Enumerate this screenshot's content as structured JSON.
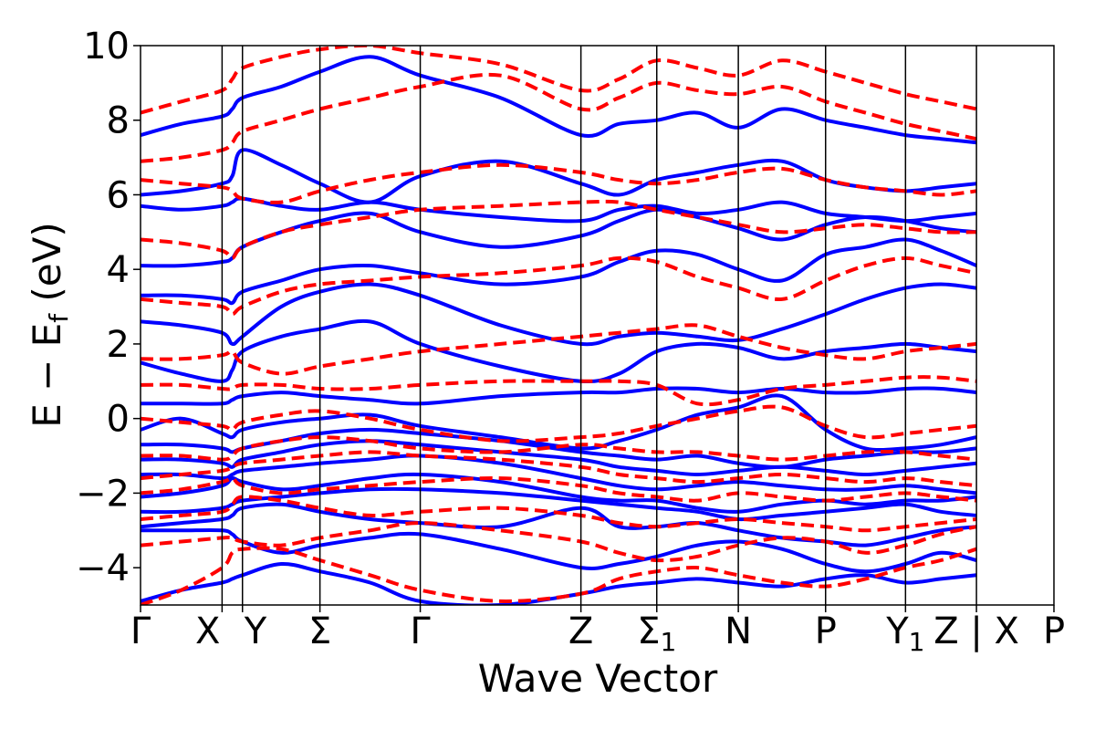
{
  "chart_data": {
    "type": "line",
    "title": "",
    "xlabel": "Wave Vector",
    "ylabel": "E − E_f (eV)",
    "ylabel_main": "E − E",
    "ylabel_sub": "f",
    "ylabel_unit": " (eV)",
    "ylim": [
      -5,
      10
    ],
    "xlim": [
      0,
      11.2
    ],
    "y_ticks": [
      "−4",
      "−2",
      "0",
      "2",
      "4",
      "6",
      "8",
      "10"
    ],
    "y_tick_values": [
      -4,
      -2,
      0,
      2,
      4,
      6,
      8,
      10
    ],
    "kpoints": [
      {
        "label": "Γ",
        "sub": "",
        "x": 0.0
      },
      {
        "label": "X",
        "sub": "",
        "x": 1.0
      },
      {
        "label": "Y",
        "sub": "",
        "x": 1.25
      },
      {
        "label": "Σ",
        "sub": "",
        "x": 2.2
      },
      {
        "label": "Γ",
        "sub": "",
        "x": 3.43
      },
      {
        "label": "Z",
        "sub": "",
        "x": 5.4
      },
      {
        "label": "Σ",
        "sub": "1",
        "x": 6.33
      },
      {
        "label": "N",
        "sub": "",
        "x": 7.33
      },
      {
        "label": "P",
        "sub": "",
        "x": 8.4
      },
      {
        "label": "Y",
        "sub": "1",
        "x": 9.38
      },
      {
        "label": "Z | X",
        "sub": "",
        "x": 10.25
      },
      {
        "label": "P",
        "sub": "",
        "x": 11.2
      }
    ],
    "series": [
      {
        "style": "solid",
        "color": "#0000ff",
        "bands": [
          [
            -4.9,
            -4.6,
            -4.4,
            -4.3,
            -4.2,
            -3.9,
            -4.1,
            -4.4,
            -4.9,
            -5.0,
            -4.7,
            -4.5,
            -4.4,
            -4.3,
            -4.4,
            -4.5,
            -4.3,
            -4.2,
            -4.4,
            -4.3,
            -4.2
          ],
          [
            -3.0,
            -3.0,
            -3.0,
            -3.1,
            -3.3,
            -3.6,
            -3.4,
            -3.2,
            -3.1,
            -3.5,
            -4.0,
            -3.9,
            -3.7,
            -3.4,
            -3.3,
            -3.5,
            -3.9,
            -4.1,
            -3.9,
            -3.6,
            -3.8
          ],
          [
            -2.9,
            -2.8,
            -2.7,
            -2.6,
            -2.4,
            -2.3,
            -2.5,
            -2.7,
            -2.8,
            -2.9,
            -2.4,
            -2.9,
            -2.9,
            -2.8,
            -3.0,
            -3.2,
            -3.3,
            -3.4,
            -3.2,
            -3.0,
            -2.9
          ],
          [
            -2.5,
            -2.5,
            -2.4,
            -2.3,
            -2.2,
            -2.1,
            -2.0,
            -1.9,
            -1.9,
            -2.0,
            -2.2,
            -2.3,
            -2.4,
            -2.5,
            -2.7,
            -2.6,
            -2.5,
            -2.4,
            -2.3,
            -2.5,
            -2.6
          ],
          [
            -2.1,
            -2.0,
            -1.8,
            -1.6,
            -1.7,
            -1.9,
            -1.8,
            -1.6,
            -1.5,
            -1.7,
            -2.1,
            -2.2,
            -2.2,
            -2.4,
            -2.5,
            -2.3,
            -2.2,
            -2.3,
            -2.2,
            -2.2,
            -2.1
          ],
          [
            -1.5,
            -1.5,
            -1.6,
            -1.5,
            -1.4,
            -1.3,
            -1.2,
            -1.1,
            -1.0,
            -1.2,
            -1.6,
            -1.8,
            -1.9,
            -1.8,
            -1.7,
            -1.8,
            -1.9,
            -1.9,
            -1.8,
            -1.9,
            -2.0
          ],
          [
            -1.1,
            -1.1,
            -1.2,
            -1.3,
            -1.1,
            -0.9,
            -0.7,
            -0.6,
            -0.7,
            -0.9,
            -1.1,
            -1.3,
            -1.4,
            -1.5,
            -1.4,
            -1.3,
            -1.4,
            -1.5,
            -1.4,
            -1.3,
            -1.2
          ],
          [
            -0.7,
            -0.7,
            -0.8,
            -0.9,
            -0.8,
            -0.6,
            -0.4,
            -0.3,
            -0.4,
            -0.6,
            -0.9,
            -1.0,
            -1.1,
            -1.0,
            -1.2,
            -1.3,
            -1.1,
            -1.0,
            -0.9,
            -0.9,
            -0.8
          ],
          [
            -0.3,
            0.0,
            -0.4,
            -0.5,
            -0.3,
            -0.1,
            0.0,
            0.1,
            -0.2,
            -0.5,
            -0.8,
            -0.6,
            -0.3,
            0.1,
            0.3,
            0.6,
            -0.3,
            -0.8,
            -0.8,
            -0.7,
            -0.5
          ],
          [
            0.4,
            0.4,
            0.4,
            0.5,
            0.6,
            0.7,
            0.6,
            0.5,
            0.4,
            0.6,
            0.7,
            0.7,
            0.8,
            0.8,
            0.7,
            0.8,
            0.7,
            0.7,
            0.8,
            0.8,
            0.7
          ],
          [
            1.5,
            1.2,
            1.0,
            1.3,
            1.8,
            2.2,
            2.4,
            2.6,
            2.0,
            1.4,
            1.0,
            1.2,
            1.8,
            2.0,
            1.9,
            1.6,
            1.8,
            1.9,
            2.0,
            1.9,
            1.8
          ],
          [
            2.6,
            2.5,
            2.3,
            2.0,
            2.2,
            3.0,
            3.4,
            3.6,
            3.3,
            2.5,
            2.0,
            2.2,
            2.3,
            2.2,
            2.1,
            2.4,
            2.8,
            3.2,
            3.5,
            3.6,
            3.5
          ],
          [
            3.3,
            3.3,
            3.2,
            3.1,
            3.4,
            3.7,
            4.0,
            4.1,
            3.9,
            3.6,
            3.8,
            4.2,
            4.5,
            4.4,
            4.0,
            3.7,
            4.4,
            4.6,
            4.8,
            4.5,
            4.1
          ],
          [
            4.1,
            4.1,
            4.2,
            4.3,
            4.6,
            5.0,
            5.3,
            5.5,
            5.0,
            4.6,
            4.9,
            5.3,
            5.6,
            5.4,
            5.1,
            4.8,
            5.2,
            5.4,
            5.3,
            5.1,
            5.0
          ],
          [
            5.7,
            5.6,
            5.7,
            5.8,
            5.9,
            5.7,
            5.6,
            5.8,
            5.6,
            5.4,
            5.3,
            5.6,
            5.7,
            5.5,
            5.6,
            5.8,
            5.5,
            5.4,
            5.3,
            5.4,
            5.5
          ],
          [
            6.0,
            6.1,
            6.3,
            6.5,
            7.2,
            6.8,
            6.3,
            5.8,
            6.5,
            6.9,
            6.3,
            6.0,
            6.4,
            6.6,
            6.8,
            6.9,
            6.4,
            6.2,
            6.1,
            6.2,
            6.3
          ],
          [
            7.6,
            7.9,
            8.1,
            8.3,
            8.6,
            8.9,
            9.3,
            9.7,
            9.2,
            8.6,
            7.6,
            7.9,
            8.0,
            8.2,
            7.8,
            8.3,
            8.0,
            7.8,
            7.6,
            7.5,
            7.4
          ]
        ]
      },
      {
        "style": "dashed",
        "color": "#ff0000",
        "bands": [
          [
            -5.0,
            -4.6,
            -4.0,
            -3.6,
            -3.5,
            -3.5,
            -3.8,
            -4.2,
            -4.6,
            -4.9,
            -4.7,
            -4.3,
            -4.1,
            -4.0,
            -4.2,
            -4.4,
            -4.5,
            -4.3,
            -4.0,
            -3.8,
            -3.5
          ],
          [
            -3.4,
            -3.3,
            -3.2,
            -3.2,
            -3.3,
            -3.4,
            -3.2,
            -3.0,
            -2.8,
            -3.0,
            -3.3,
            -3.6,
            -3.8,
            -3.7,
            -3.4,
            -3.2,
            -3.3,
            -3.6,
            -3.4,
            -3.1,
            -2.9
          ],
          [
            -2.7,
            -2.6,
            -2.5,
            -2.3,
            -2.1,
            -2.2,
            -2.4,
            -2.6,
            -2.5,
            -2.4,
            -2.6,
            -2.8,
            -2.9,
            -2.8,
            -2.7,
            -2.8,
            -2.9,
            -3.0,
            -2.9,
            -2.8,
            -2.7
          ],
          [
            -2.0,
            -1.9,
            -1.7,
            -1.6,
            -1.8,
            -2.0,
            -1.9,
            -1.8,
            -1.7,
            -1.6,
            -1.8,
            -2.0,
            -2.1,
            -2.2,
            -2.0,
            -2.1,
            -2.2,
            -2.1,
            -2.0,
            -2.1,
            -2.2
          ],
          [
            -1.6,
            -1.5,
            -1.4,
            -1.3,
            -1.2,
            -1.1,
            -1.0,
            -0.9,
            -1.0,
            -1.1,
            -1.3,
            -1.5,
            -1.6,
            -1.7,
            -1.6,
            -1.5,
            -1.6,
            -1.7,
            -1.6,
            -1.7,
            -1.8
          ],
          [
            -1.0,
            -1.0,
            -1.1,
            -1.0,
            -0.8,
            -0.6,
            -0.5,
            -0.6,
            -0.8,
            -0.9,
            -0.7,
            -0.8,
            -0.9,
            -0.9,
            -1.0,
            -1.1,
            -1.0,
            -0.9,
            -0.9,
            -1.0,
            -1.1
          ],
          [
            0.0,
            -0.1,
            -0.2,
            -0.3,
            -0.1,
            0.1,
            0.2,
            0.0,
            -0.3,
            -0.6,
            -0.5,
            -0.4,
            -0.2,
            0.0,
            0.2,
            0.3,
            -0.2,
            -0.5,
            -0.4,
            -0.3,
            -0.2
          ],
          [
            0.9,
            0.9,
            0.8,
            0.8,
            0.9,
            0.9,
            0.8,
            0.8,
            0.9,
            1.0,
            1.0,
            1.0,
            0.9,
            0.4,
            0.5,
            0.8,
            0.9,
            1.0,
            1.1,
            1.1,
            1.0
          ],
          [
            1.6,
            1.6,
            1.7,
            1.8,
            1.5,
            1.2,
            1.4,
            1.6,
            1.8,
            2.0,
            2.2,
            2.3,
            2.4,
            2.5,
            2.2,
            1.9,
            1.7,
            1.6,
            1.8,
            1.9,
            2.0
          ],
          [
            3.2,
            3.1,
            3.0,
            2.8,
            3.0,
            3.4,
            3.6,
            3.7,
            3.8,
            3.9,
            4.1,
            4.3,
            4.2,
            3.8,
            3.5,
            3.2,
            3.7,
            4.1,
            4.3,
            4.1,
            3.9
          ],
          [
            4.8,
            4.7,
            4.5,
            4.3,
            4.6,
            5.0,
            5.2,
            5.4,
            5.6,
            5.7,
            5.8,
            5.8,
            5.6,
            5.4,
            5.2,
            5.0,
            5.1,
            5.2,
            5.1,
            5.0,
            5.0
          ],
          [
            6.4,
            6.3,
            6.2,
            6.1,
            5.9,
            5.8,
            6.1,
            6.4,
            6.6,
            6.8,
            6.6,
            6.4,
            6.3,
            6.4,
            6.6,
            6.7,
            6.4,
            6.2,
            6.1,
            6.0,
            6.1
          ],
          [
            6.9,
            7.0,
            7.2,
            7.4,
            7.7,
            8.0,
            8.3,
            8.6,
            8.9,
            9.2,
            8.3,
            8.6,
            9.0,
            8.8,
            8.7,
            8.9,
            8.5,
            8.2,
            7.9,
            7.7,
            7.5
          ],
          [
            8.2,
            8.5,
            8.8,
            9.1,
            9.4,
            9.7,
            9.9,
            10.0,
            9.8,
            9.5,
            8.8,
            9.1,
            9.6,
            9.4,
            9.2,
            9.6,
            9.3,
            9.0,
            8.7,
            8.5,
            8.3
          ]
        ]
      }
    ]
  }
}
